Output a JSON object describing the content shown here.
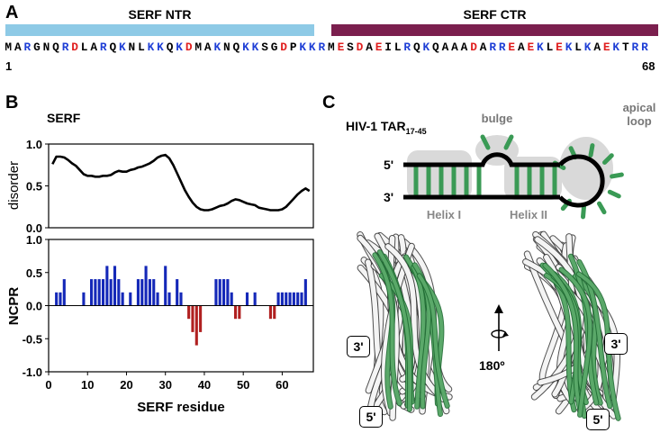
{
  "panel_a": {
    "letter": "A",
    "ntr_label": "SERF NTR",
    "ctr_label": "SERF CTR",
    "ntr_color": "#8ecae6",
    "ctr_color": "#7b1f4e",
    "sequence": "MARGNQRDLARQKNLKKQKDMAKNQKKSGDPKKRMESDAEILRQKQAAADARREAEKLEKLKAEKTRR",
    "start_number": "1",
    "end_number": "68",
    "positive_color": "#1f3fd6",
    "negative_color": "#e02020"
  },
  "panel_b": {
    "letter": "B",
    "title": "SERF",
    "top_ylabel": "disorder",
    "bottom_ylabel": "NCPR",
    "xlabel": "SERF residue"
  },
  "panel_c": {
    "letter": "C",
    "title_main": "HIV-1 TAR",
    "title_sub": "17-45",
    "label_bulge": "bulge",
    "label_apical_1": "apical",
    "label_apical_2": "loop",
    "label_five_prime": "5'",
    "label_three_prime": "3'",
    "label_helix1": "Helix I",
    "label_helix2": "Helix II",
    "rotation_label": "180º",
    "struct_left_3": "3'",
    "struct_left_5": "5'",
    "struct_right_3": "3'",
    "struct_right_5": "5'",
    "stem_color": "#3a9a55"
  },
  "chart_data": [
    {
      "type": "line",
      "ylabel": "disorder",
      "xlim": [
        0,
        68
      ],
      "ylim": [
        0.0,
        1.0
      ],
      "yticks": [
        "0.0",
        "0.5",
        "1.0"
      ],
      "x": [
        1,
        2,
        3,
        4,
        5,
        6,
        7,
        8,
        9,
        10,
        11,
        12,
        13,
        14,
        15,
        16,
        17,
        18,
        19,
        20,
        21,
        22,
        23,
        24,
        25,
        26,
        27,
        28,
        29,
        30,
        31,
        32,
        33,
        34,
        35,
        36,
        37,
        38,
        39,
        40,
        41,
        42,
        43,
        44,
        45,
        46,
        47,
        48,
        49,
        50,
        51,
        52,
        53,
        54,
        55,
        56,
        57,
        58,
        59,
        60,
        61,
        62,
        63,
        64,
        65,
        66,
        67
      ],
      "y": [
        0.76,
        0.85,
        0.85,
        0.84,
        0.81,
        0.77,
        0.74,
        0.69,
        0.64,
        0.62,
        0.62,
        0.61,
        0.61,
        0.62,
        0.62,
        0.63,
        0.66,
        0.68,
        0.67,
        0.67,
        0.69,
        0.7,
        0.72,
        0.73,
        0.75,
        0.77,
        0.8,
        0.84,
        0.86,
        0.87,
        0.83,
        0.75,
        0.65,
        0.55,
        0.45,
        0.37,
        0.3,
        0.25,
        0.22,
        0.21,
        0.21,
        0.22,
        0.24,
        0.26,
        0.27,
        0.29,
        0.32,
        0.34,
        0.33,
        0.31,
        0.29,
        0.28,
        0.27,
        0.24,
        0.23,
        0.22,
        0.21,
        0.21,
        0.21,
        0.22,
        0.25,
        0.3,
        0.35,
        0.4,
        0.44,
        0.47,
        0.44
      ],
      "series": [
        {
          "color": "#000000"
        }
      ]
    },
    {
      "type": "bar",
      "ylabel": "NCPR",
      "xlabel": "SERF residue",
      "xlim": [
        0,
        68
      ],
      "ylim": [
        -1.0,
        1.0
      ],
      "xticks": [
        "0",
        "10",
        "20",
        "30",
        "40",
        "50",
        "60"
      ],
      "yticks": [
        "-1.0",
        "-0.5",
        "0.0",
        "0.5",
        "1.0"
      ],
      "x": [
        1,
        2,
        3,
        4,
        5,
        6,
        7,
        8,
        9,
        10,
        11,
        12,
        13,
        14,
        15,
        16,
        17,
        18,
        19,
        20,
        21,
        22,
        23,
        24,
        25,
        26,
        27,
        28,
        29,
        30,
        31,
        32,
        33,
        34,
        35,
        36,
        37,
        38,
        39,
        40,
        41,
        42,
        43,
        44,
        45,
        46,
        47,
        48,
        49,
        50,
        51,
        52,
        53,
        54,
        55,
        56,
        57,
        58,
        59,
        60,
        61,
        62,
        63,
        64,
        65,
        66,
        67,
        68
      ],
      "values": [
        0,
        0.2,
        0.2,
        0.4,
        0,
        0,
        0,
        0,
        0.2,
        0,
        0.4,
        0.4,
        0.4,
        0.4,
        0.6,
        0.4,
        0.6,
        0.4,
        0.2,
        0,
        0.2,
        0,
        0.4,
        0.4,
        0.6,
        0.4,
        0.4,
        0.2,
        0,
        0.6,
        0.2,
        0,
        0.4,
        0.2,
        0,
        -0.2,
        -0.4,
        -0.6,
        -0.4,
        0,
        0,
        0,
        0.4,
        0.4,
        0.4,
        0.4,
        0.2,
        -0.2,
        -0.2,
        0,
        0.2,
        0,
        0.2,
        0,
        0,
        0,
        -0.2,
        -0.2,
        0.2,
        0.2,
        0.2,
        0.2,
        0.2,
        0.2,
        0.2,
        0.4,
        0,
        0
      ],
      "positive_color": "#1428b8",
      "negative_color": "#b02020"
    }
  ]
}
